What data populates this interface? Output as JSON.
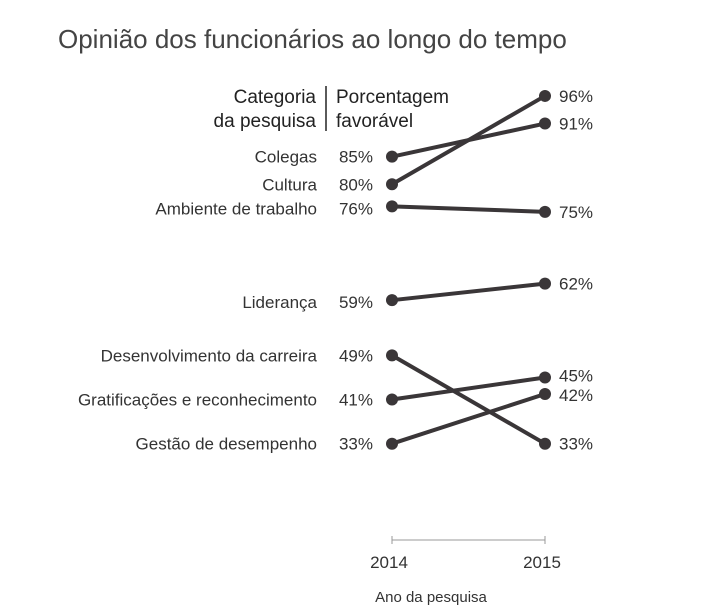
{
  "chart_data": {
    "type": "line",
    "title": "Opinião dos funcionários ao longo do tempo",
    "header_left": [
      "Categoria",
      "da pesquisa"
    ],
    "header_right": [
      "Porcentagem",
      "favorável"
    ],
    "x": [
      "2014",
      "2015"
    ],
    "xlabel": "Ano da pesquisa",
    "series": [
      {
        "name": "Colegas",
        "values": [
          85,
          91
        ],
        "labels": [
          "85%",
          "91%"
        ]
      },
      {
        "name": "Cultura",
        "values": [
          80,
          96
        ],
        "labels": [
          "80%",
          "96%"
        ]
      },
      {
        "name": "Ambiente de trabalho",
        "values": [
          76,
          75
        ],
        "labels": [
          "76%",
          "75%"
        ]
      },
      {
        "name": "Liderança",
        "values": [
          59,
          62
        ],
        "labels": [
          "59%",
          "62%"
        ]
      },
      {
        "name": "Desenvolvimento da carreira",
        "values": [
          49,
          33
        ],
        "labels": [
          "49%",
          "33%"
        ]
      },
      {
        "name": "Gratificações e reconhecimento",
        "values": [
          41,
          45
        ],
        "labels": [
          "41%",
          "45%"
        ]
      },
      {
        "name": "Gestão de desempenho",
        "values": [
          33,
          42
        ],
        "labels": [
          "33%",
          "42%"
        ]
      }
    ],
    "grid": false,
    "legend": "none",
    "line_color": "#3a3638"
  }
}
